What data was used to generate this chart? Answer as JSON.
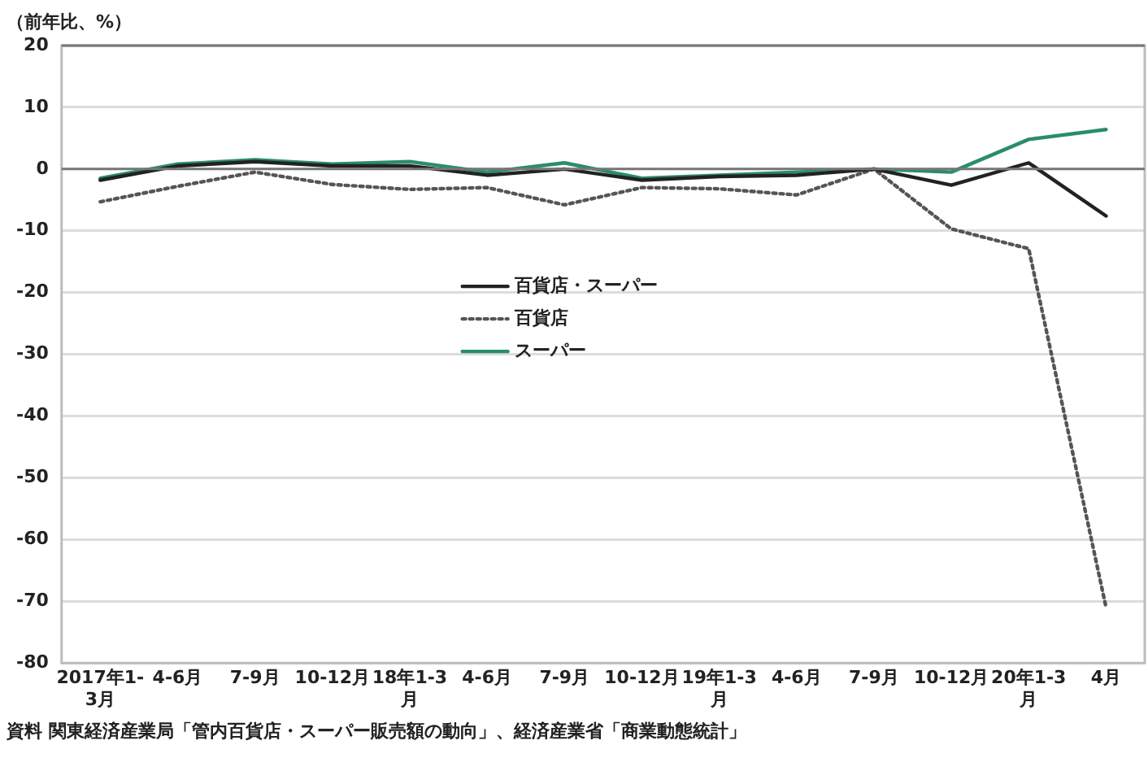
{
  "chart_data": {
    "type": "line",
    "ylabel": "（前年比、%）",
    "categories": [
      "2017年1-3月",
      "4-6月",
      "7-9月",
      "10-12月",
      "18年1-3月",
      "4-6月",
      "7-9月",
      "10-12月",
      "19年1-3月",
      "4-6月",
      "7-9月",
      "10-12月",
      "20年1-3月",
      "4月"
    ],
    "series": [
      {
        "name": "百貨店・スーパー",
        "color": "#222222",
        "line_style": "solid",
        "values": [
          -1.8,
          0.5,
          1.2,
          0.5,
          0.5,
          -1.0,
          0,
          -1.8,
          -1.2,
          -1.0,
          0,
          -2.6,
          1.0,
          -7.6
        ]
      },
      {
        "name": "百貨店",
        "color": "#555555",
        "line_style": "dotted",
        "values": [
          -5.3,
          -2.8,
          -0.5,
          -2.5,
          -3.3,
          -3.0,
          -5.8,
          -3.0,
          -3.2,
          -4.2,
          0,
          -9.7,
          -12.9,
          -71
        ]
      },
      {
        "name": "スーパー",
        "color": "#2a8c6e",
        "line_style": "solid",
        "values": [
          -1.5,
          0.8,
          1.5,
          0.8,
          1.2,
          -0.5,
          1.0,
          -1.5,
          -1.0,
          -0.5,
          0,
          -0.5,
          4.8,
          6.4
        ]
      }
    ],
    "ylim": [
      -80,
      20
    ],
    "yticks": [
      20,
      10,
      0,
      -10,
      -20,
      -30,
      -40,
      -50,
      -60,
      -70,
      -80
    ],
    "grid": "y",
    "legend": "center",
    "marker": "none",
    "annotations": [
      "資料 関東経済産業局「管内百貨店・スーパー販売額の動向」、経済産業省「商業動態統計」"
    ]
  }
}
